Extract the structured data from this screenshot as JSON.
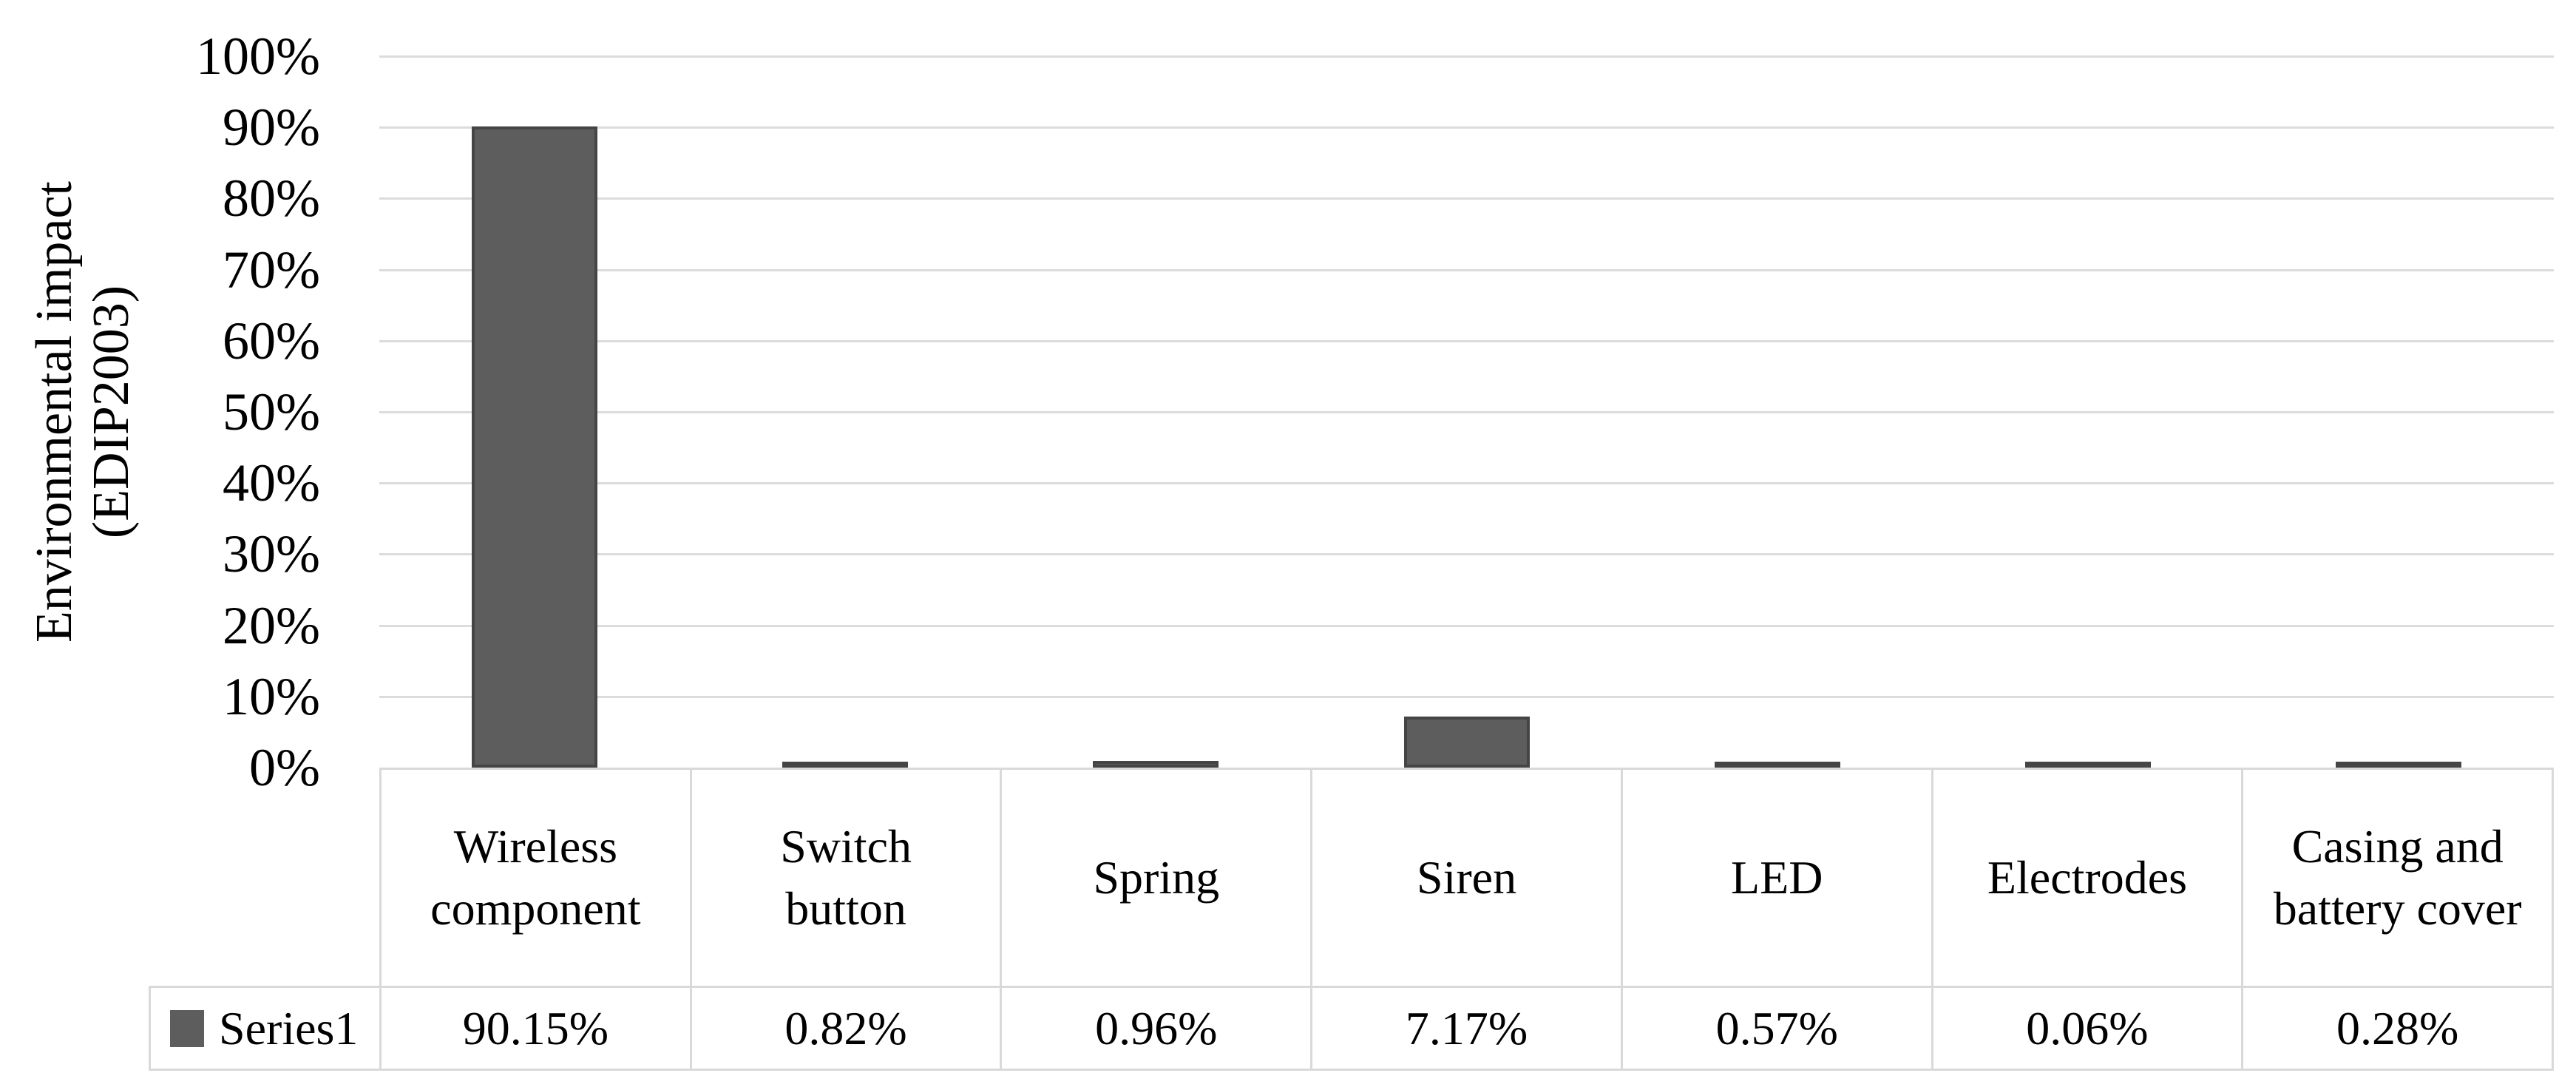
{
  "chart_data": {
    "type": "bar",
    "title": "",
    "ylabel_line1": "Environmental impact",
    "ylabel_line2": "(EDIP2003)",
    "categories": [
      "Wireless component",
      "Switch button",
      "Spring",
      "Siren",
      "LED",
      "Electrodes",
      "Casing and battery cover"
    ],
    "series": [
      {
        "name": "Series1",
        "values": [
          90.15,
          0.82,
          0.96,
          7.17,
          0.57,
          0.06,
          0.28
        ],
        "value_labels": [
          "90.15%",
          "0.82%",
          "0.96%",
          "7.17%",
          "0.57%",
          "0.06%",
          "0.28%"
        ]
      }
    ],
    "y_ticks": [
      "100%",
      "90%",
      "80%",
      "70%",
      "60%",
      "50%",
      "40%",
      "30%",
      "20%",
      "10%",
      "0%"
    ],
    "ylim": [
      0,
      100
    ],
    "grid": "horizontal-only",
    "legend_position": "table-left",
    "colors": {
      "bar_fill": "#5d5d5d",
      "bar_border": "#454545",
      "gridline": "#dcdcdc",
      "table_border": "#d9d9d9",
      "text": "#000000",
      "background": "#ffffff"
    }
  }
}
